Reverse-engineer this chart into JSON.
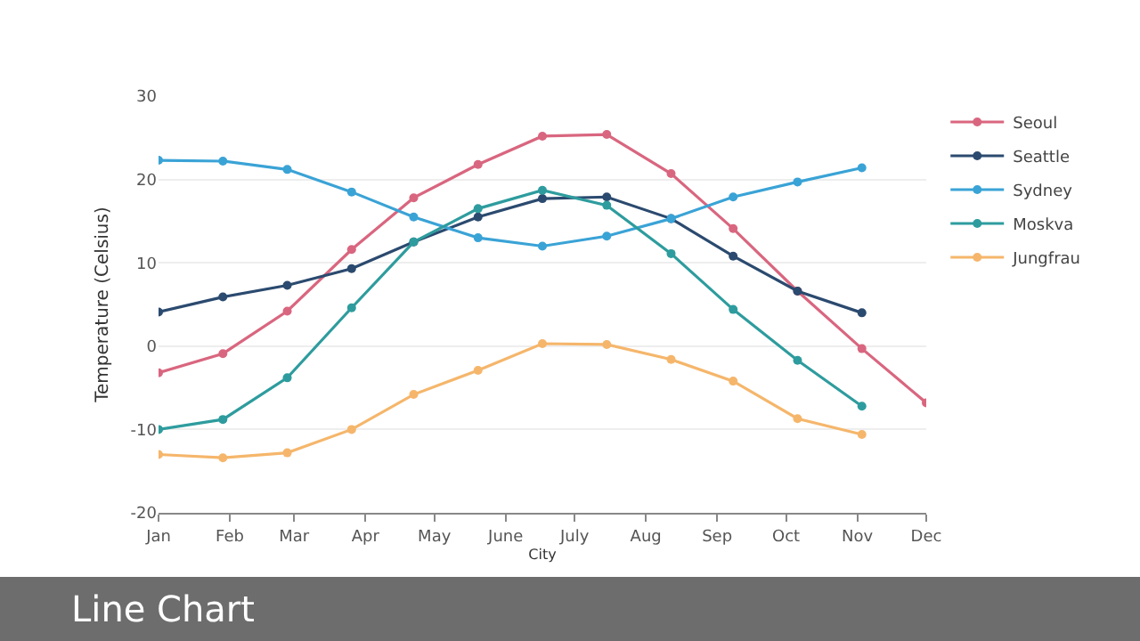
{
  "chart_data": {
    "type": "line",
    "xlabel": "City",
    "ylabel": "Temperature (Celsius)",
    "annotations": [
      "Line Chart"
    ],
    "xlim": [
      "--01-01",
      "--12-01"
    ],
    "xticks": [
      {
        "value": "--01-01",
        "label": "Jan"
      },
      {
        "value": "--02-01",
        "label": "Feb"
      },
      {
        "value": "--03-01",
        "label": "Mar"
      },
      {
        "value": "--04-01",
        "label": "Apr"
      },
      {
        "value": "--05-01",
        "label": "May"
      },
      {
        "value": "--06-01",
        "label": "June"
      },
      {
        "value": "--07-01",
        "label": "July"
      },
      {
        "value": "--08-01",
        "label": "Aug"
      },
      {
        "value": "--09-01",
        "label": "Sep"
      },
      {
        "value": "--10-01",
        "label": "Oct"
      },
      {
        "value": "--11-01",
        "label": "Nov"
      },
      {
        "value": "--12-01",
        "label": "Dec"
      }
    ],
    "ylim": [
      -20,
      30
    ],
    "yticks": [
      -20,
      -10,
      0,
      10,
      20,
      30
    ],
    "grid": "y",
    "legend": "top right",
    "marker": "circle",
    "line_style": "solid",
    "series": [
      {
        "name": "Seoul",
        "color": "#d9667f",
        "x": [
          "--01-01",
          "--01-29",
          "--02-26",
          "--03-26",
          "--04-22",
          "--05-20",
          "--06-17",
          "--07-15",
          "--08-12",
          "--09-08",
          "--10-06",
          "--11-03",
          "--12-01"
        ],
        "values": [
          -3.2,
          -0.9,
          4.2,
          11.6,
          17.8,
          21.8,
          25.2,
          25.4,
          20.7,
          14.1,
          6.6,
          -0.3,
          -6.8
        ]
      },
      {
        "name": "Seattle",
        "color": "#2b4a6f",
        "x": [
          "--01-01",
          "--01-29",
          "--02-26",
          "--03-26",
          "--04-22",
          "--05-20",
          "--06-17",
          "--07-15",
          "--08-12",
          "--09-08",
          "--10-06",
          "--11-03"
        ],
        "values": [
          4.1,
          5.9,
          7.3,
          9.3,
          12.5,
          15.5,
          17.7,
          17.9,
          15.3,
          10.8,
          6.6,
          4.0
        ]
      },
      {
        "name": "Sydney",
        "color": "#3aa3d6",
        "x": [
          "--01-01",
          "--01-29",
          "--02-26",
          "--03-26",
          "--04-22",
          "--05-20",
          "--06-17",
          "--07-15",
          "--08-12",
          "--09-08",
          "--10-06",
          "--11-03"
        ],
        "values": [
          22.3,
          22.2,
          21.2,
          18.5,
          15.5,
          13.0,
          12.0,
          13.2,
          15.3,
          17.9,
          19.7,
          21.4
        ]
      },
      {
        "name": "Moskva",
        "color": "#2e9c9e",
        "x": [
          "--01-01",
          "--01-29",
          "--02-26",
          "--03-26",
          "--04-22",
          "--05-20",
          "--06-17",
          "--07-15",
          "--08-12",
          "--09-08",
          "--10-06",
          "--11-03"
        ],
        "values": [
          -10.0,
          -8.8,
          -3.8,
          4.6,
          12.5,
          16.5,
          18.7,
          16.9,
          11.1,
          4.4,
          -1.7,
          -7.2
        ]
      },
      {
        "name": "Jungfrau",
        "color": "#f5b66b",
        "x": [
          "--01-01",
          "--01-29",
          "--02-26",
          "--03-26",
          "--04-22",
          "--05-20",
          "--06-17",
          "--07-15",
          "--08-12",
          "--09-08",
          "--10-06",
          "--11-03"
        ],
        "values": [
          -13.0,
          -13.4,
          -12.8,
          -10.0,
          -5.8,
          -2.9,
          0.3,
          0.2,
          -1.6,
          -4.2,
          -8.7,
          -10.6
        ]
      }
    ]
  }
}
